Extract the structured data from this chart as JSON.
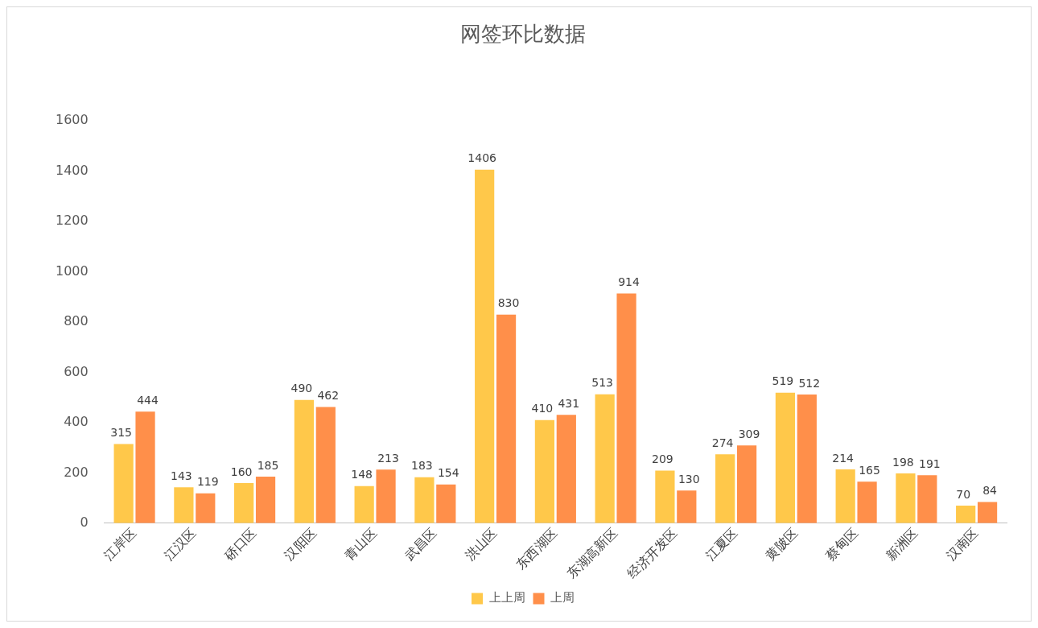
{
  "chart_data": {
    "type": "bar",
    "title": "网签环比数据",
    "categories": [
      "江岸区",
      "江汉区",
      "硚口区",
      "汉阳区",
      "青山区",
      "武昌区",
      "洪山区",
      "东西湖区",
      "东湖高新区",
      "经济开发区",
      "江夏区",
      "黄陂区",
      "蔡甸区",
      "新洲区",
      "汉南区"
    ],
    "series": [
      {
        "name": "上上周",
        "color": "#ffc84a",
        "values": [
          315,
          143,
          160,
          490,
          148,
          183,
          1406,
          410,
          513,
          209,
          274,
          519,
          214,
          198,
          70
        ]
      },
      {
        "name": "上周",
        "color": "#ff8f4a",
        "values": [
          444,
          119,
          185,
          462,
          213,
          154,
          830,
          431,
          914,
          130,
          309,
          512,
          165,
          191,
          84
        ]
      }
    ],
    "ylim": [
      0,
      1600
    ],
    "yticks": [
      0,
      200,
      400,
      600,
      800,
      1000,
      1200,
      1400,
      1600
    ],
    "grid": false,
    "legend": "bottom",
    "data_labels": true
  }
}
